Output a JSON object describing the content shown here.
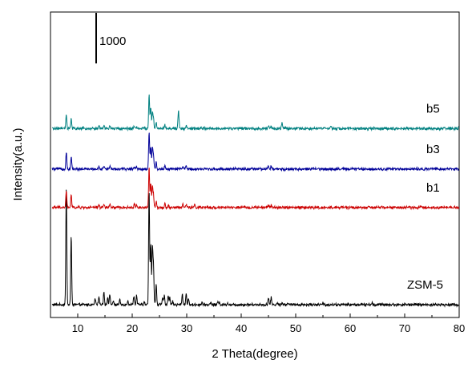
{
  "chart_data": {
    "type": "line",
    "title": "",
    "xlabel": "2 Theta(degree)",
    "ylabel": "Intensity(a.u.)",
    "xlim": [
      5,
      80
    ],
    "xticks": [
      10,
      20,
      30,
      40,
      50,
      60,
      70,
      80
    ],
    "scale_bar_label": "1000",
    "scale_bar_value": 1000,
    "y_offset_units": "a.u. (stacked, arbitrary offsets)",
    "series": [
      {
        "name": "ZSM-5",
        "color": "#000000",
        "baseline": 0,
        "peaks": [
          [
            7.9,
            2900
          ],
          [
            8.8,
            1700
          ],
          [
            13.2,
            150
          ],
          [
            13.9,
            220
          ],
          [
            14.8,
            330
          ],
          [
            15.5,
            190
          ],
          [
            15.9,
            240
          ],
          [
            16.5,
            80
          ],
          [
            17.7,
            120
          ],
          [
            19.2,
            110
          ],
          [
            20.3,
            210
          ],
          [
            20.8,
            230
          ],
          [
            22.2,
            60
          ],
          [
            23.1,
            2850
          ],
          [
            23.4,
            1500
          ],
          [
            23.7,
            1400
          ],
          [
            23.9,
            950
          ],
          [
            24.4,
            520
          ],
          [
            25.6,
            170
          ],
          [
            25.9,
            230
          ],
          [
            26.6,
            240
          ],
          [
            26.9,
            180
          ],
          [
            27.4,
            90
          ],
          [
            29.2,
            260
          ],
          [
            29.9,
            270
          ],
          [
            30.3,
            150
          ],
          [
            32.8,
            60
          ],
          [
            34.4,
            50
          ],
          [
            35.7,
            60
          ],
          [
            36.0,
            70
          ],
          [
            37.5,
            50
          ],
          [
            45.0,
            180
          ],
          [
            45.5,
            180
          ],
          [
            46.6,
            50
          ],
          [
            47.5,
            60
          ],
          [
            48.6,
            50
          ],
          [
            55.0,
            40
          ],
          [
            64.0,
            40
          ]
        ]
      },
      {
        "name": "b1",
        "color": "#cc0000",
        "baseline": 2400,
        "peaks": [
          [
            7.9,
            420
          ],
          [
            8.8,
            310
          ],
          [
            13.9,
            70
          ],
          [
            14.8,
            80
          ],
          [
            15.9,
            80
          ],
          [
            20.4,
            70
          ],
          [
            20.8,
            70
          ],
          [
            23.1,
            980
          ],
          [
            23.4,
            600
          ],
          [
            23.7,
            500
          ],
          [
            23.9,
            320
          ],
          [
            24.4,
            170
          ],
          [
            26.0,
            90
          ],
          [
            26.6,
            70
          ],
          [
            29.3,
            80
          ],
          [
            29.9,
            90
          ],
          [
            31.5,
            80
          ],
          [
            45.0,
            70
          ],
          [
            45.5,
            60
          ]
        ]
      },
      {
        "name": "b3",
        "color": "#000099",
        "baseline": 3350,
        "peaks": [
          [
            7.9,
            420
          ],
          [
            8.8,
            310
          ],
          [
            13.9,
            60
          ],
          [
            14.8,
            70
          ],
          [
            15.9,
            80
          ],
          [
            20.4,
            70
          ],
          [
            20.8,
            70
          ],
          [
            23.1,
            920
          ],
          [
            23.4,
            560
          ],
          [
            23.7,
            520
          ],
          [
            23.9,
            330
          ],
          [
            24.4,
            170
          ],
          [
            26.0,
            80
          ],
          [
            29.3,
            70
          ],
          [
            29.9,
            80
          ],
          [
            45.0,
            70
          ],
          [
            45.5,
            60
          ]
        ]
      },
      {
        "name": "b5",
        "color": "#008080",
        "baseline": 4350,
        "peaks": [
          [
            7.9,
            340
          ],
          [
            8.8,
            230
          ],
          [
            13.9,
            60
          ],
          [
            14.8,
            70
          ],
          [
            15.9,
            60
          ],
          [
            20.4,
            60
          ],
          [
            20.8,
            50
          ],
          [
            23.1,
            830
          ],
          [
            23.4,
            520
          ],
          [
            23.7,
            380
          ],
          [
            23.9,
            270
          ],
          [
            24.4,
            140
          ],
          [
            26.0,
            80
          ],
          [
            28.5,
            450
          ],
          [
            29.9,
            60
          ],
          [
            45.0,
            50
          ],
          [
            45.5,
            50
          ],
          [
            47.5,
            150
          ],
          [
            56.5,
            60
          ]
        ]
      }
    ]
  }
}
